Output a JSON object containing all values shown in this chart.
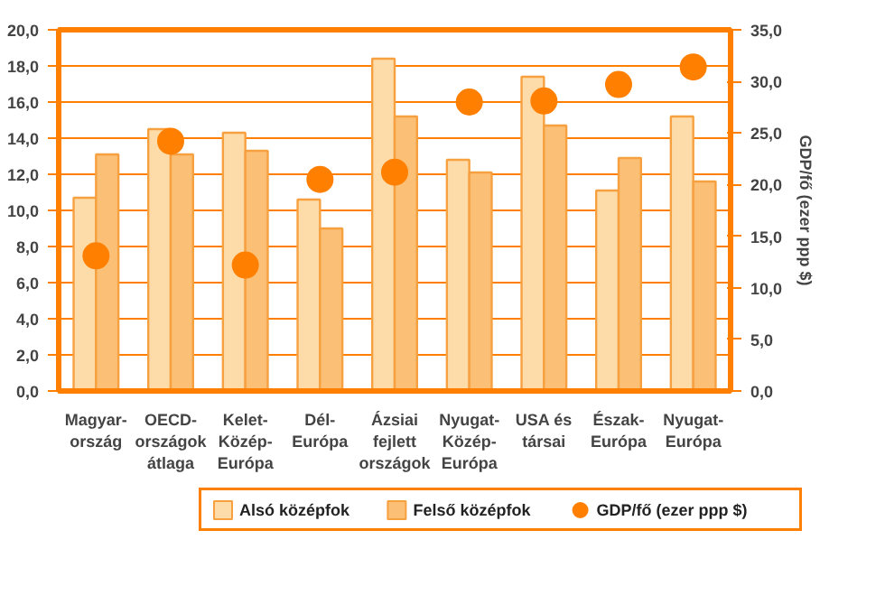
{
  "chart_data": {
    "type": "bar",
    "categories": [
      "Magyar-\nország",
      "OECD-\nországok\nátlaga",
      "Kelet-\nKözép-\nEurópa",
      "Dél-\nEurópa",
      "Ázsiai\nfejlett\nországok",
      "Nyugat-\nKözép-\nEurópa",
      "USA és\ntársai",
      "Észak-\nEurópa",
      "Nyugat-\nEurópa"
    ],
    "series": [
      {
        "name": "Alsó középfok",
        "color": "#fddcaa",
        "values": [
          10.7,
          14.5,
          14.3,
          10.6,
          18.4,
          12.8,
          17.4,
          11.1,
          15.2
        ]
      },
      {
        "name": "Felső középfok",
        "color": "#fbbf75",
        "values": [
          13.1,
          13.1,
          13.3,
          9.0,
          15.2,
          12.1,
          14.7,
          12.9,
          11.6
        ]
      },
      {
        "name": "GDP/fő (ezer ppp $)",
        "color": "#ff8000",
        "type": "scatter",
        "axis": "y2",
        "values": [
          13.1,
          24.2,
          12.2,
          20.5,
          21.2,
          28.0,
          28.1,
          29.7,
          31.4
        ]
      }
    ],
    "ylim": [
      0,
      20
    ],
    "yticks": [
      {
        "value": 0,
        "label": "0,0"
      },
      {
        "value": 2,
        "label": "2,0"
      },
      {
        "value": 4,
        "label": "4,0"
      },
      {
        "value": 6,
        "label": "6,0"
      },
      {
        "value": 8,
        "label": "8,0"
      },
      {
        "value": 10,
        "label": "10,0"
      },
      {
        "value": 12,
        "label": "12,0"
      },
      {
        "value": 14,
        "label": "14,0"
      },
      {
        "value": 16,
        "label": "16,0"
      },
      {
        "value": 18,
        "label": "18,0"
      },
      {
        "value": 20,
        "label": "20,0"
      }
    ],
    "y2lim": [
      0,
      35
    ],
    "y2ticks": [
      {
        "value": 0,
        "label": "0,0"
      },
      {
        "value": 5,
        "label": "5,0"
      },
      {
        "value": 10,
        "label": "10,0"
      },
      {
        "value": 15,
        "label": "15,0"
      },
      {
        "value": 20,
        "label": "20,0"
      },
      {
        "value": 25,
        "label": "25,0"
      },
      {
        "value": 30,
        "label": "30,0"
      },
      {
        "value": 35,
        "label": "35,0"
      }
    ],
    "y2label": "GDP/fő (ezer ppp $)",
    "grid": "y",
    "legend": "bottom",
    "marker": "circle"
  }
}
